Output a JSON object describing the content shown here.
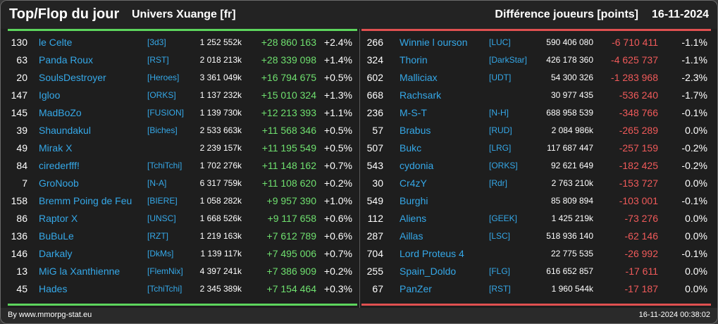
{
  "header": {
    "title": "Top/Flop du jour",
    "universe": "Univers Xuange [fr]",
    "metric": "Différence joueurs [points]",
    "date": "16-11-2024"
  },
  "colors": {
    "name": "#35a8e8",
    "gain": "#6fe06f",
    "loss": "#f05a5a",
    "top_bar": "#5dd55d",
    "flop_bar": "#e05050"
  },
  "top": [
    {
      "rank": "130",
      "name": "le Celte",
      "alliance": "[3d3]",
      "points": "1 252 552k",
      "diff": "+28 860 163",
      "pct": "+2.4%"
    },
    {
      "rank": "63",
      "name": "Panda Roux",
      "alliance": "[RST]",
      "points": "2 018 213k",
      "diff": "+28 339 098",
      "pct": "+1.4%"
    },
    {
      "rank": "20",
      "name": "SoulsDestroyer",
      "alliance": "[Heroes]",
      "points": "3 361 049k",
      "diff": "+16 794 675",
      "pct": "+0.5%"
    },
    {
      "rank": "147",
      "name": "Igloo",
      "alliance": "[ORKS]",
      "points": "1 137 232k",
      "diff": "+15 010 324",
      "pct": "+1.3%"
    },
    {
      "rank": "145",
      "name": "MadBoZo",
      "alliance": "[FUSION]",
      "points": "1 139 730k",
      "diff": "+12 213 393",
      "pct": "+1.1%"
    },
    {
      "rank": "39",
      "name": "Shaundakul",
      "alliance": "[Biches]",
      "points": "2 533 663k",
      "diff": "+11 568 346",
      "pct": "+0.5%"
    },
    {
      "rank": "49",
      "name": "Mirak X",
      "alliance": "",
      "points": "2 239 157k",
      "diff": "+11 195 549",
      "pct": "+0.5%"
    },
    {
      "rank": "84",
      "name": "cirederfff!",
      "alliance": "[TchiTchi]",
      "points": "1 702 276k",
      "diff": "+11 148 162",
      "pct": "+0.7%"
    },
    {
      "rank": "7",
      "name": "GroNoob",
      "alliance": "[N-A]",
      "points": "6 317 759k",
      "diff": "+11 108 620",
      "pct": "+0.2%"
    },
    {
      "rank": "158",
      "name": "Bremm Poing de Feu",
      "alliance": "[BIERE]",
      "points": "1 058 282k",
      "diff": "+9 957 390",
      "pct": "+1.0%"
    },
    {
      "rank": "86",
      "name": "Raptor X",
      "alliance": "[UNSC]",
      "points": "1 668 526k",
      "diff": "+9 117 658",
      "pct": "+0.6%"
    },
    {
      "rank": "136",
      "name": "BuBuLe",
      "alliance": "[RZT]",
      "points": "1 219 163k",
      "diff": "+7 612 789",
      "pct": "+0.6%"
    },
    {
      "rank": "146",
      "name": "Darkaly",
      "alliance": "[DkMs]",
      "points": "1 139 117k",
      "diff": "+7 495 006",
      "pct": "+0.7%"
    },
    {
      "rank": "13",
      "name": "MiG la Xanthienne",
      "alliance": "[FlemNix]",
      "points": "4 397 241k",
      "diff": "+7 386 909",
      "pct": "+0.2%"
    },
    {
      "rank": "45",
      "name": "Hades",
      "alliance": "[TchiTchi]",
      "points": "2 345 389k",
      "diff": "+7 154 464",
      "pct": "+0.3%"
    }
  ],
  "flop": [
    {
      "rank": "266",
      "name": "Winnie l ourson",
      "alliance": "[LUC]",
      "points": "590 406 080",
      "diff": "-6 710 411",
      "pct": "-1.1%"
    },
    {
      "rank": "324",
      "name": "Thorin",
      "alliance": "[DarkStar]",
      "points": "426 178 360",
      "diff": "-4 625 737",
      "pct": "-1.1%"
    },
    {
      "rank": "602",
      "name": "Malliciax",
      "alliance": "[UDT]",
      "points": "54 300 326",
      "diff": "-1 283 968",
      "pct": "-2.3%"
    },
    {
      "rank": "668",
      "name": "Rachsark",
      "alliance": "",
      "points": "30 977 435",
      "diff": "-536 240",
      "pct": "-1.7%"
    },
    {
      "rank": "236",
      "name": "M-S-T",
      "alliance": "[N-H]",
      "points": "688 958 539",
      "diff": "-348 766",
      "pct": "-0.1%"
    },
    {
      "rank": "57",
      "name": "Brabus",
      "alliance": "[RUD]",
      "points": "2 084 986k",
      "diff": "-265 289",
      "pct": "0.0%"
    },
    {
      "rank": "507",
      "name": "Bukc",
      "alliance": "[LRG]",
      "points": "117 687 447",
      "diff": "-257 159",
      "pct": "-0.2%"
    },
    {
      "rank": "543",
      "name": "cydonia",
      "alliance": "[ORKS]",
      "points": "92 621 649",
      "diff": "-182 425",
      "pct": "-0.2%"
    },
    {
      "rank": "30",
      "name": "Cr4zY",
      "alliance": "[Rdr]",
      "points": "2 763 210k",
      "diff": "-153 727",
      "pct": "0.0%"
    },
    {
      "rank": "549",
      "name": "Burghi",
      "alliance": "",
      "points": "85 809 894",
      "diff": "-103 001",
      "pct": "-0.1%"
    },
    {
      "rank": "112",
      "name": "Aliens",
      "alliance": "[GEEK]",
      "points": "1 425 219k",
      "diff": "-73 276",
      "pct": "0.0%"
    },
    {
      "rank": "287",
      "name": "Aillas",
      "alliance": "[LSC]",
      "points": "518 936 140",
      "diff": "-62 146",
      "pct": "0.0%"
    },
    {
      "rank": "704",
      "name": "Lord Proteus 4",
      "alliance": "",
      "points": "22 775 535",
      "diff": "-26 992",
      "pct": "-0.1%"
    },
    {
      "rank": "255",
      "name": "Spain_Doldo",
      "alliance": "[FLG]",
      "points": "616 652 857",
      "diff": "-17 611",
      "pct": "0.0%"
    },
    {
      "rank": "67",
      "name": "PanZer",
      "alliance": "[RST]",
      "points": "1 960 544k",
      "diff": "-17 187",
      "pct": "0.0%"
    }
  ],
  "footer": {
    "source": "By www.mmorpg-stat.eu",
    "timestamp": "16-11-2024 00:38:02"
  }
}
